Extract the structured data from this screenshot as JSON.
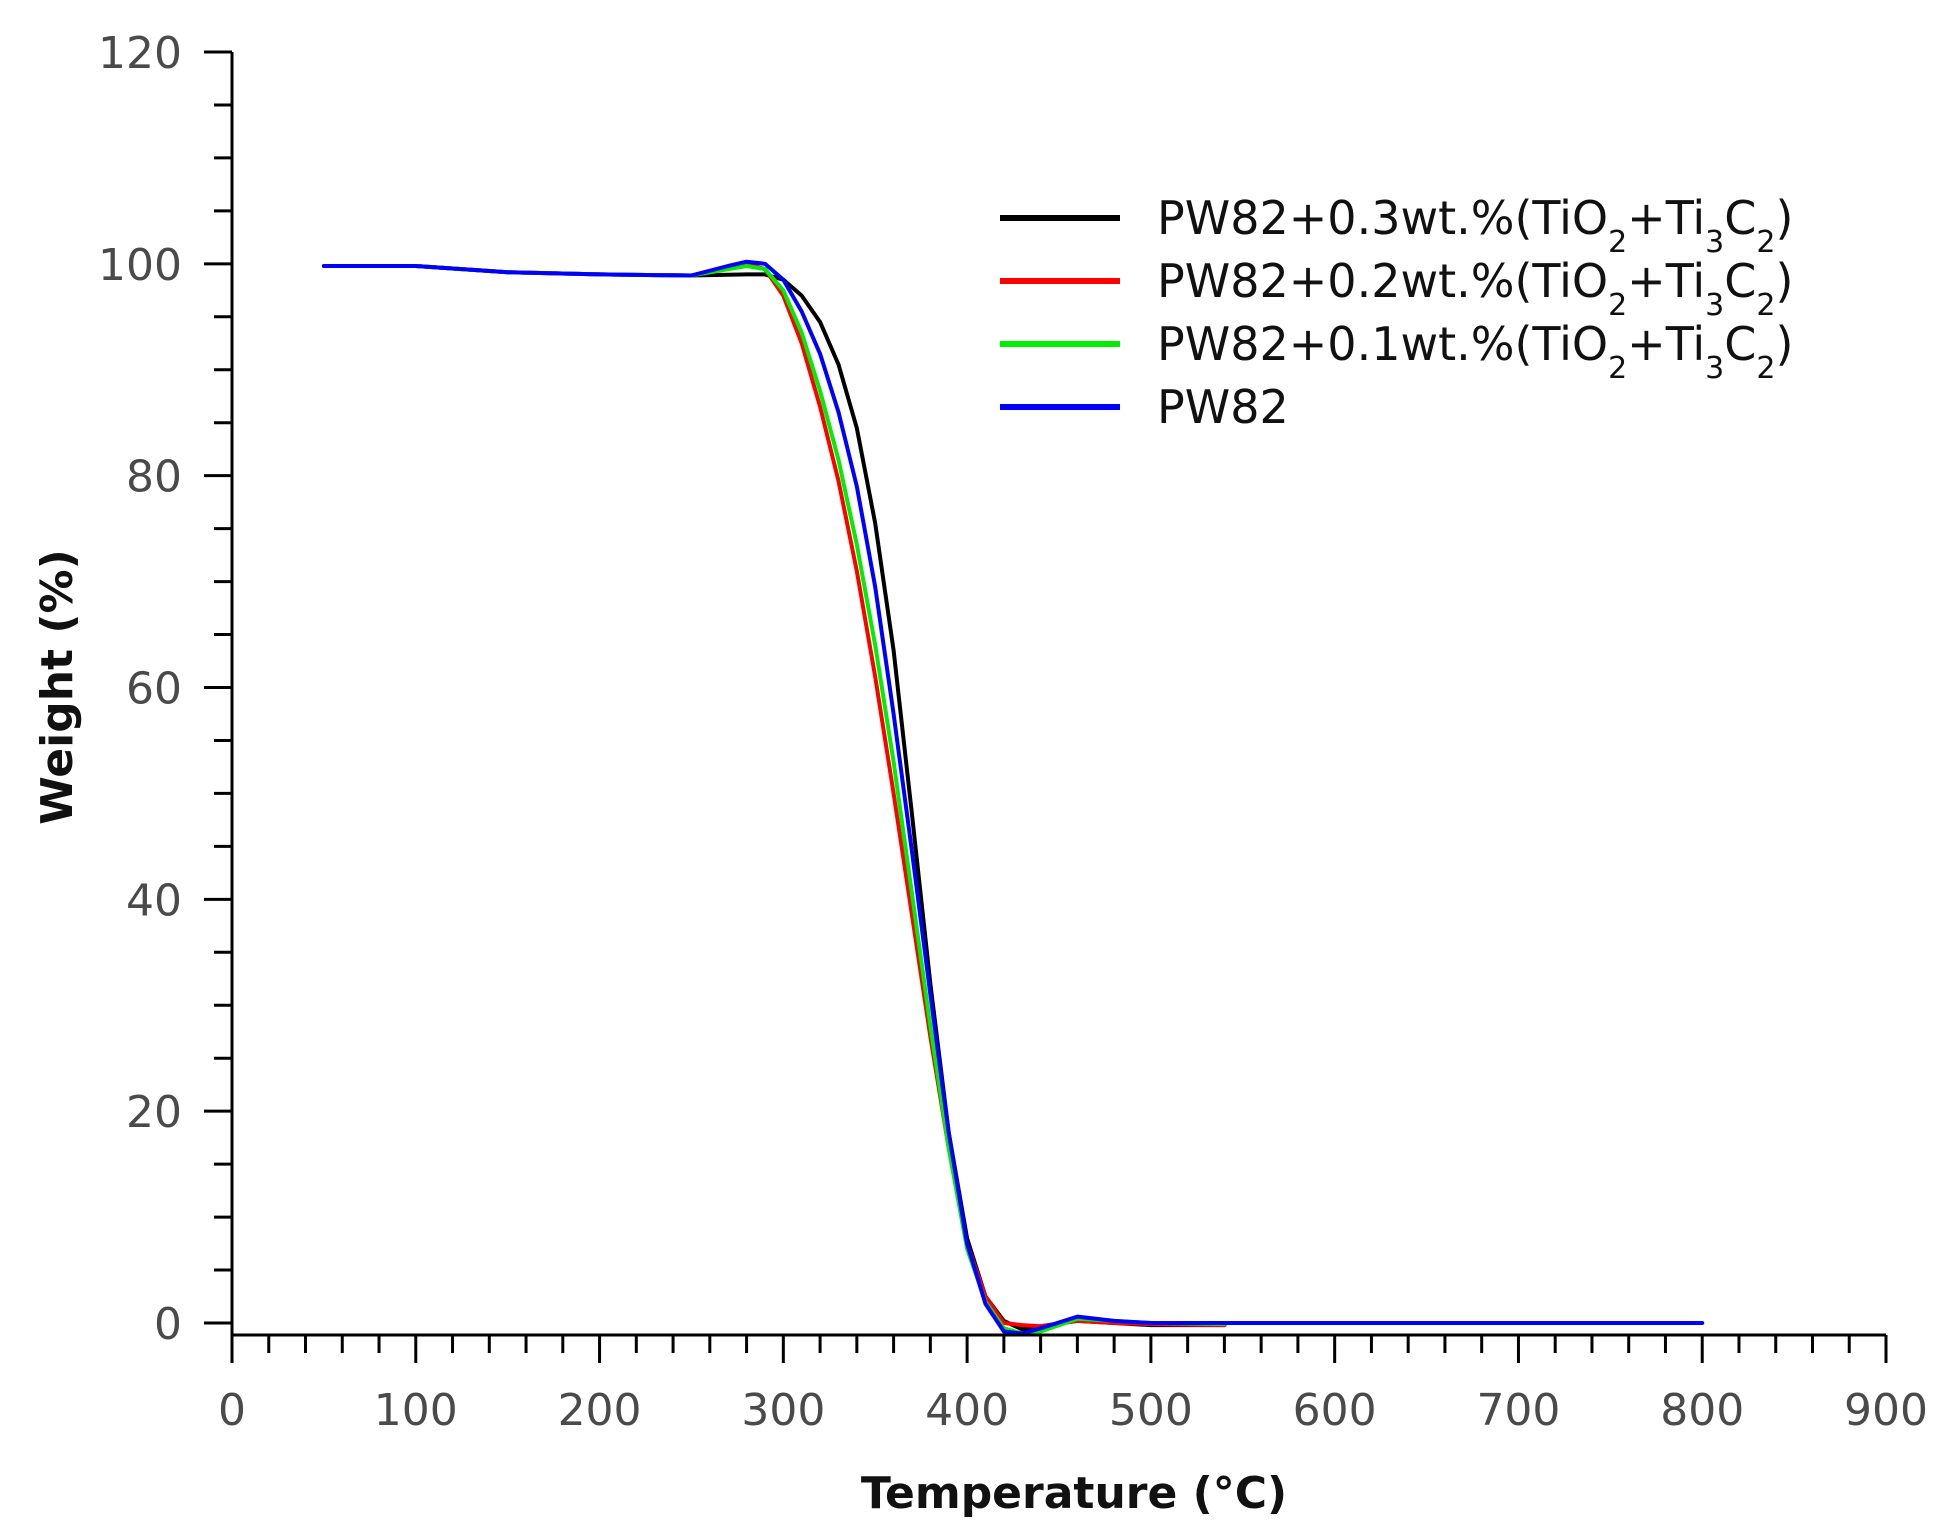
{
  "chart_data": {
    "type": "line",
    "title": "",
    "xlabel": "Temperature (°C)",
    "ylabel": "Weight (%)",
    "xlim": [
      0,
      900
    ],
    "ylim": [
      0,
      120
    ],
    "xticks": [
      0,
      100,
      200,
      300,
      400,
      500,
      600,
      700,
      800,
      900
    ],
    "yticks": [
      0,
      20,
      40,
      60,
      80,
      100,
      120
    ],
    "grid": false,
    "legend_position": "top-right",
    "series": [
      {
        "name": "PW82+0.3wt.%(TiO2+Ti3C2)",
        "legend_parts": [
          {
            "text": "PW82+0.3wt.%(TiO",
            "sub": false
          },
          {
            "text": "2",
            "sub": true
          },
          {
            "text": "+Ti",
            "sub": false
          },
          {
            "text": "3",
            "sub": true
          },
          {
            "text": "C",
            "sub": false
          },
          {
            "text": "2",
            "sub": true
          },
          {
            "text": ")",
            "sub": false
          }
        ],
        "color": "#000000",
        "x": [
          50,
          100,
          150,
          200,
          250,
          280,
          290,
          300,
          310,
          320,
          330,
          340,
          350,
          360,
          370,
          380,
          390,
          400,
          410,
          420,
          430,
          440,
          460,
          480,
          500,
          540
        ],
        "y": [
          99.8,
          99.8,
          99.2,
          99.0,
          98.9,
          99.0,
          99.0,
          98.5,
          97.0,
          94.5,
          90.5,
          84.5,
          75.5,
          63.5,
          48.0,
          32.0,
          18.0,
          8.0,
          2.5,
          0.2,
          -0.6,
          -0.3,
          0.2,
          0.0,
          -0.2,
          -0.2
        ]
      },
      {
        "name": "PW82+0.2wt.%(TiO2+Ti3C2)",
        "legend_parts": [
          {
            "text": "PW82+0.2wt.%(TiO",
            "sub": false
          },
          {
            "text": "2",
            "sub": true
          },
          {
            "text": "+Ti",
            "sub": false
          },
          {
            "text": "3",
            "sub": true
          },
          {
            "text": "C",
            "sub": false
          },
          {
            "text": "2",
            "sub": true
          },
          {
            "text": ")",
            "sub": false
          }
        ],
        "color": "#ff0000",
        "x": [
          50,
          100,
          150,
          200,
          250,
          270,
          280,
          290,
          300,
          310,
          320,
          330,
          340,
          350,
          360,
          370,
          380,
          390,
          400,
          410,
          420,
          430,
          440,
          460,
          480,
          500,
          540
        ],
        "y": [
          99.8,
          99.8,
          99.2,
          99.0,
          98.9,
          99.8,
          100.0,
          99.5,
          97.0,
          92.5,
          86.5,
          79.5,
          71.0,
          61.0,
          50.0,
          38.5,
          27.0,
          16.5,
          7.5,
          2.5,
          0.0,
          -0.2,
          -0.3,
          0.2,
          0.0,
          -0.1,
          -0.2
        ]
      },
      {
        "name": "PW82+0.1wt.%(TiO2+Ti3C2)",
        "legend_parts": [
          {
            "text": "PW82+0.1wt.%(TiO",
            "sub": false
          },
          {
            "text": "2",
            "sub": true
          },
          {
            "text": "+Ti",
            "sub": false
          },
          {
            "text": "3",
            "sub": true
          },
          {
            "text": "C",
            "sub": false
          },
          {
            "text": "2",
            "sub": true
          },
          {
            "text": ")",
            "sub": false
          }
        ],
        "color": "#00ee00",
        "x": [
          50,
          100,
          150,
          200,
          250,
          270,
          280,
          290,
          300,
          310,
          320,
          330,
          340,
          350,
          360,
          370,
          380,
          390,
          400,
          410,
          420,
          430,
          440,
          460,
          480,
          500,
          540
        ],
        "y": [
          99.8,
          99.8,
          99.2,
          99.0,
          98.9,
          99.5,
          99.8,
          99.5,
          97.5,
          93.5,
          88.0,
          81.5,
          73.5,
          64.0,
          53.0,
          40.5,
          28.0,
          16.5,
          7.0,
          2.0,
          -0.5,
          -1.0,
          -0.8,
          0.4,
          0.2,
          0.0,
          -0.1
        ]
      },
      {
        "name": "PW82",
        "legend_parts": [
          {
            "text": "PW82",
            "sub": false
          }
        ],
        "color": "#0000ff",
        "x": [
          50,
          100,
          150,
          200,
          250,
          270,
          280,
          290,
          300,
          310,
          320,
          330,
          340,
          350,
          360,
          370,
          380,
          390,
          400,
          410,
          420,
          430,
          440,
          460,
          480,
          500,
          560,
          600,
          700,
          800
        ],
        "y": [
          99.8,
          99.8,
          99.2,
          99.0,
          98.9,
          99.8,
          100.2,
          100.0,
          98.5,
          95.5,
          91.5,
          86.0,
          79.0,
          69.5,
          57.5,
          44.5,
          31.0,
          18.0,
          7.5,
          1.8,
          -0.8,
          -1.0,
          -0.5,
          0.6,
          0.2,
          0.0,
          0.0,
          0.0,
          0.0,
          0.0
        ]
      }
    ]
  }
}
